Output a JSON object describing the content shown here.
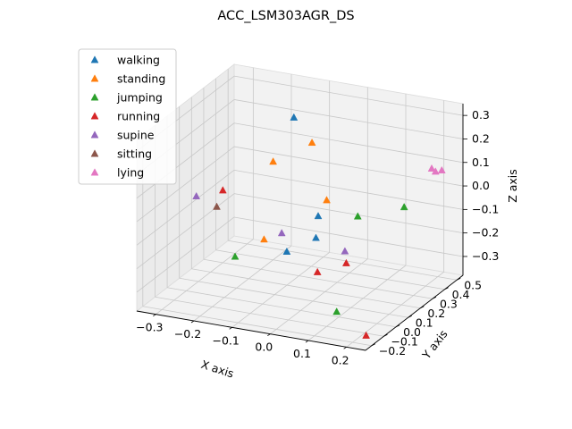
{
  "chart_data": {
    "type": "scatter",
    "projection": "3d",
    "title": "ACC_LSM303AGR_DS",
    "xlabel": "X axis",
    "ylabel": "Y axis",
    "zlabel": "Z axis",
    "xlim": [
      -0.35,
      0.25
    ],
    "ylim": [
      -0.25,
      0.55
    ],
    "zlim": [
      -0.38,
      0.35
    ],
    "xticks": [
      -0.3,
      -0.2,
      -0.1,
      0.0,
      0.1,
      0.2
    ],
    "yticks": [
      -0.2,
      -0.1,
      0.0,
      0.1,
      0.2,
      0.3,
      0.4,
      0.5
    ],
    "zticks": [
      -0.3,
      -0.2,
      -0.1,
      0.0,
      0.1,
      0.2,
      0.3
    ],
    "xtick_labels": [
      "−0.3",
      "−0.2",
      "−0.1",
      "0.0",
      "0.1",
      "0.2"
    ],
    "ytick_labels": [
      "−0.2",
      "−0.1",
      "0.0",
      "0.1",
      "0.2",
      "0.3",
      "0.4",
      "0.5"
    ],
    "ztick_labels": [
      "−0.3",
      "−0.2",
      "−0.1",
      "0.0",
      "0.1",
      "0.2",
      "0.3"
    ],
    "grid": true,
    "legend_position": "top-left",
    "marker": "triangle",
    "series": [
      {
        "name": "walking",
        "color": "#1f77b4",
        "points": [
          {
            "x": -0.12,
            "y": 0.32,
            "z": 0.28
          },
          {
            "x": 0.03,
            "y": 0.05,
            "z": 0.01
          },
          {
            "x": 0.04,
            "y": 0.0,
            "z": -0.06
          },
          {
            "x": -0.03,
            "y": -0.02,
            "z": -0.13
          }
        ]
      },
      {
        "name": "standing",
        "color": "#ff7f0e",
        "points": [
          {
            "x": -0.05,
            "y": 0.25,
            "z": 0.22
          },
          {
            "x": -0.12,
            "y": 0.15,
            "z": 0.16
          },
          {
            "x": 0.03,
            "y": 0.12,
            "z": 0.05
          },
          {
            "x": -0.08,
            "y": -0.05,
            "z": -0.08
          }
        ]
      },
      {
        "name": "jumping",
        "color": "#2ca02c",
        "points": [
          {
            "x": 0.15,
            "y": 0.38,
            "z": -0.05
          },
          {
            "x": 0.07,
            "y": 0.25,
            "z": -0.06
          },
          {
            "x": -0.14,
            "y": -0.1,
            "z": -0.15
          },
          {
            "x": 0.12,
            "y": -0.08,
            "z": -0.32
          }
        ]
      },
      {
        "name": "running",
        "color": "#d62728",
        "points": [
          {
            "x": -0.22,
            "y": 0.05,
            "z": 0.05
          },
          {
            "x": 0.06,
            "y": -0.05,
            "z": -0.18
          },
          {
            "x": 0.11,
            "y": 0.03,
            "z": -0.16
          },
          {
            "x": 0.21,
            "y": -0.12,
            "z": -0.38
          }
        ]
      },
      {
        "name": "supine",
        "color": "#9467bd",
        "points": [
          {
            "x": -0.28,
            "y": 0.02,
            "z": 0.02
          },
          {
            "x": -0.04,
            "y": -0.03,
            "z": -0.05
          },
          {
            "x": 0.1,
            "y": 0.05,
            "z": -0.12
          }
        ]
      },
      {
        "name": "sitting",
        "color": "#8c564b",
        "points": [
          {
            "x": -0.22,
            "y": 0.0,
            "z": 0.0
          }
        ]
      },
      {
        "name": "lying",
        "color": "#e377c2",
        "points": [
          {
            "x": 0.2,
            "y": 0.45,
            "z": 0.1
          },
          {
            "x": 0.21,
            "y": 0.45,
            "z": 0.09
          },
          {
            "x": 0.22,
            "y": 0.47,
            "z": 0.09
          }
        ]
      }
    ]
  }
}
